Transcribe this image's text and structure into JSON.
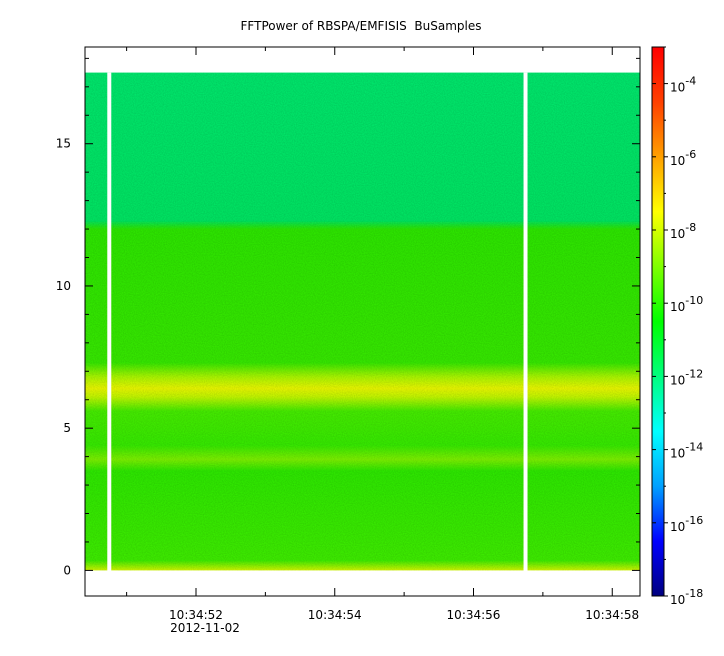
{
  "chart_data": {
    "type": "heatmap",
    "title": "FFTPower of RBSPA/EMFISIS  BuSamples",
    "xlabel": "",
    "ylabel": "",
    "x_date_label": "2012-11-02",
    "x_ticks": [
      "10:34:52",
      "10:34:54",
      "10:34:56",
      "10:34:58"
    ],
    "x_tick_values": [
      52,
      54,
      56,
      58
    ],
    "x_minor_tick_values": [
      51,
      53,
      55,
      57
    ],
    "x_range": [
      50.4,
      58.4
    ],
    "y_ticks": [
      "0",
      "5",
      "10",
      "15"
    ],
    "y_tick_values": [
      0,
      5,
      10,
      15
    ],
    "y_range": [
      -0.9,
      18.4
    ],
    "y_data_range": [
      0,
      17.5
    ],
    "gaps_x": [
      50.75,
      56.75
    ],
    "colorbar": {
      "scale": "log",
      "range": [
        1e-18,
        0.001
      ],
      "ticks": [
        {
          "base": "10",
          "exp": "-4",
          "value": 0.0001
        },
        {
          "base": "10",
          "exp": "-6",
          "value": 1e-06
        },
        {
          "base": "10",
          "exp": "-8",
          "value": 1e-08
        },
        {
          "base": "10",
          "exp": "-10",
          "value": 1e-10
        },
        {
          "base": "10",
          "exp": "-12",
          "value": 1e-12
        },
        {
          "base": "10",
          "exp": "-14",
          "value": 1e-14
        },
        {
          "base": "10",
          "exp": "-16",
          "value": 1e-16
        },
        {
          "base": "10",
          "exp": "-18",
          "value": 1e-18
        }
      ],
      "colors": [
        "#00007f",
        "#0000ff",
        "#00a0ff",
        "#00ffff",
        "#00ff7f",
        "#00ff00",
        "#7fff00",
        "#ffff00",
        "#ffa000",
        "#ff4000",
        "#ff0000"
      ]
    },
    "bands": [
      {
        "y_from": 0,
        "y_to": 0.3,
        "level": "yellow-green"
      },
      {
        "y_from": 0.3,
        "y_to": 6.0,
        "level": "green"
      },
      {
        "y_from": 6.0,
        "y_to": 7.0,
        "level": "yellow"
      },
      {
        "y_from": 7.0,
        "y_to": 12.2,
        "level": "green"
      },
      {
        "y_from": 12.2,
        "y_to": 17.5,
        "level": "cyan-green"
      }
    ]
  }
}
